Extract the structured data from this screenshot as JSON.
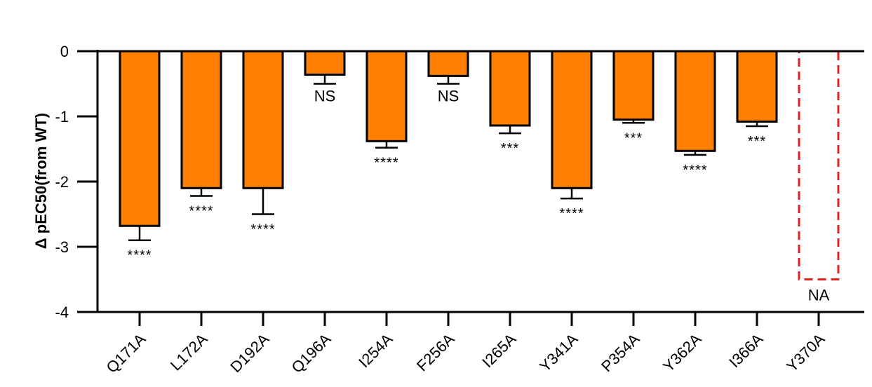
{
  "chart_data": {
    "type": "bar",
    "ylabel": "Δ pEC50(from WT)",
    "ylim": [
      -4,
      0
    ],
    "yticks": [
      0,
      -1,
      -2,
      -3,
      -4
    ],
    "categories": [
      "Q171A",
      "L172A",
      "D192A",
      "Q196A",
      "I254A",
      "F256A",
      "I265A",
      "Y341A",
      "P354A",
      "Y362A",
      "I366A",
      "Y370A"
    ],
    "values": [
      -2.68,
      -2.1,
      -2.1,
      -0.36,
      -1.38,
      -0.38,
      -1.14,
      -2.1,
      -1.05,
      -1.53,
      -1.08,
      null
    ],
    "errors": [
      0.22,
      0.12,
      0.4,
      0.14,
      0.1,
      0.12,
      0.12,
      0.16,
      0.05,
      0.06,
      0.07,
      null
    ],
    "significance": [
      "****",
      "****",
      "****",
      "NS",
      "****",
      "NS",
      "***",
      "****",
      "***",
      "****",
      "***",
      "NA"
    ],
    "not_available": {
      "category": "Y370A",
      "shown_depth": -3.5,
      "label": "NA"
    },
    "colors": {
      "bar_fill": "#ff8000",
      "bar_stroke": "#000000",
      "na_outline": "#e32222",
      "axis": "#000000"
    },
    "grid": false,
    "legend": "none"
  }
}
